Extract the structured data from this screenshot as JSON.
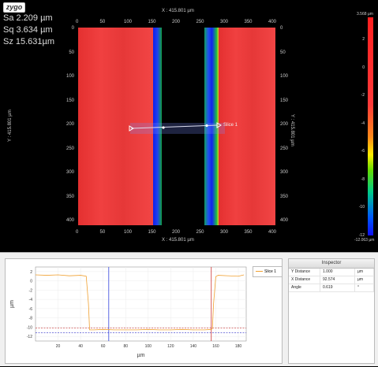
{
  "brand": "zygo",
  "stats": {
    "sa": "Sa 2.209 µm",
    "sq": "Sq 3.634 µm",
    "sz": "Sz 15.631µm"
  },
  "map": {
    "x_extent_label": "X : 415.801 µm",
    "y_extent_label": "Y : 415.801 µm",
    "x_ticks": [
      "0",
      "50",
      "100",
      "150",
      "200",
      "250",
      "300",
      "350",
      "400"
    ],
    "y_ticks": [
      "0",
      "50",
      "100",
      "150",
      "200",
      "250",
      "300",
      "350",
      "400"
    ],
    "slice_label": "Slice 1"
  },
  "colorbar": {
    "max_label": "3.568 µm",
    "min_label": "-12.063 µm",
    "ticks": [
      "2",
      "0",
      "-2",
      "-4",
      "-6",
      "-8",
      "-10",
      "-12"
    ]
  },
  "profile": {
    "legend": "Slice 1",
    "ylabel": "µm",
    "xlabel": "µm",
    "y_ticks": [
      "2",
      "0",
      "-2",
      "-4",
      "-6",
      "-8",
      "-10",
      "-12"
    ],
    "x_ticks": [
      "20",
      "40",
      "60",
      "80",
      "100",
      "120",
      "140",
      "160",
      "180"
    ]
  },
  "chart_data": {
    "type": "line",
    "xlabel": "µm",
    "ylabel": "µm",
    "xlim": [
      0,
      187
    ],
    "ylim": [
      -13,
      3
    ],
    "series": [
      {
        "name": "Slice 1",
        "color": "#f0a030",
        "x": [
          0,
          10,
          20,
          30,
          40,
          45,
          47,
          48,
          52,
          60,
          70,
          80,
          90,
          100,
          110,
          120,
          130,
          140,
          150,
          156,
          157,
          158,
          160,
          162,
          170,
          180,
          185
        ],
        "y": [
          1.3,
          1.2,
          1.3,
          1.1,
          1.2,
          1.0,
          -5,
          -10.6,
          -10.6,
          -10.5,
          -10.6,
          -10.6,
          -10.6,
          -10.5,
          -10.6,
          -10.6,
          -10.5,
          -10.6,
          -10.6,
          -10.5,
          -10.3,
          -5,
          0.9,
          1.2,
          1.1,
          1.0,
          1.3
        ]
      }
    ],
    "cursors": {
      "blue_x": 65,
      "red_x": 156
    },
    "ref_lines": [
      -10.2,
      -11.2
    ]
  },
  "inspector": {
    "title": "Inspector",
    "rows": [
      {
        "label": "Y Distance",
        "value": "1.000",
        "unit": "µm"
      },
      {
        "label": "X Distance",
        "value": "92.574",
        "unit": "µm"
      },
      {
        "label": "Angle",
        "value": "0.619",
        "unit": "°"
      }
    ]
  }
}
